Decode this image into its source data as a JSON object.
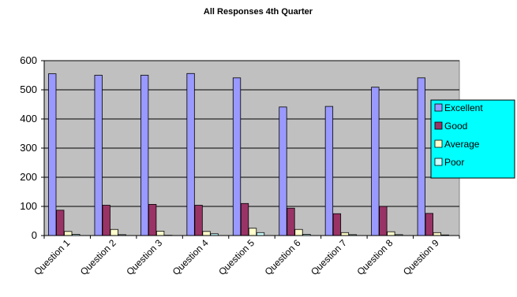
{
  "chart_data": {
    "type": "bar",
    "title": "All Responses 4th Quarter",
    "xlabel": "",
    "ylabel": "",
    "ylim": [
      0,
      600
    ],
    "yticks": [
      0,
      100,
      200,
      300,
      400,
      500,
      600
    ],
    "grid": true,
    "legend_position": "right",
    "categories": [
      "Question 1",
      "Question 2",
      "Question 3",
      "Question 4",
      "Question 5",
      "Question 6",
      "Question 7",
      "Question 8",
      "Question 9"
    ],
    "series": [
      {
        "name": "Excellent",
        "color": "#9999ff",
        "values": [
          555,
          550,
          550,
          556,
          541,
          441,
          443,
          509,
          541
        ]
      },
      {
        "name": "Good",
        "color": "#993366",
        "values": [
          87,
          104,
          107,
          104,
          110,
          94,
          75,
          100,
          76
        ]
      },
      {
        "name": "Average",
        "color": "#ffffcc",
        "values": [
          14,
          21,
          15,
          14,
          25,
          21,
          10,
          13,
          10
        ]
      },
      {
        "name": "Poor",
        "color": "#ccffff",
        "values": [
          4,
          3,
          1,
          6,
          10,
          4,
          3,
          3,
          2
        ]
      }
    ],
    "plot_background": "#c0c0c0",
    "legend_background": "#00ffff"
  }
}
